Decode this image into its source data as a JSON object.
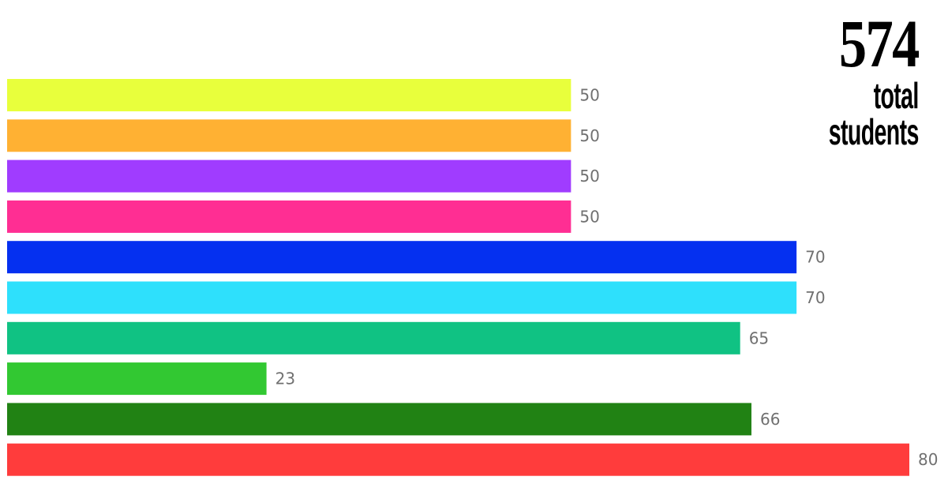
{
  "summary": {
    "total_value": "574",
    "total_line1": "total",
    "total_line2": "students"
  },
  "chart_data": {
    "type": "bar",
    "orientation": "horizontal",
    "title": "",
    "xlabel": "",
    "ylabel": "",
    "grid": false,
    "legend": "none",
    "xlim": [
      0,
      80
    ],
    "values": [
      50,
      50,
      50,
      50,
      70,
      70,
      65,
      23,
      66,
      80
    ],
    "colors": [
      "#e8ff3c",
      "#ffb133",
      "#a03cff",
      "#ff2e93",
      "#0530f0",
      "#2ee0fc",
      "#10c283",
      "#32c832",
      "#218214",
      "#ff3c3c"
    ]
  }
}
